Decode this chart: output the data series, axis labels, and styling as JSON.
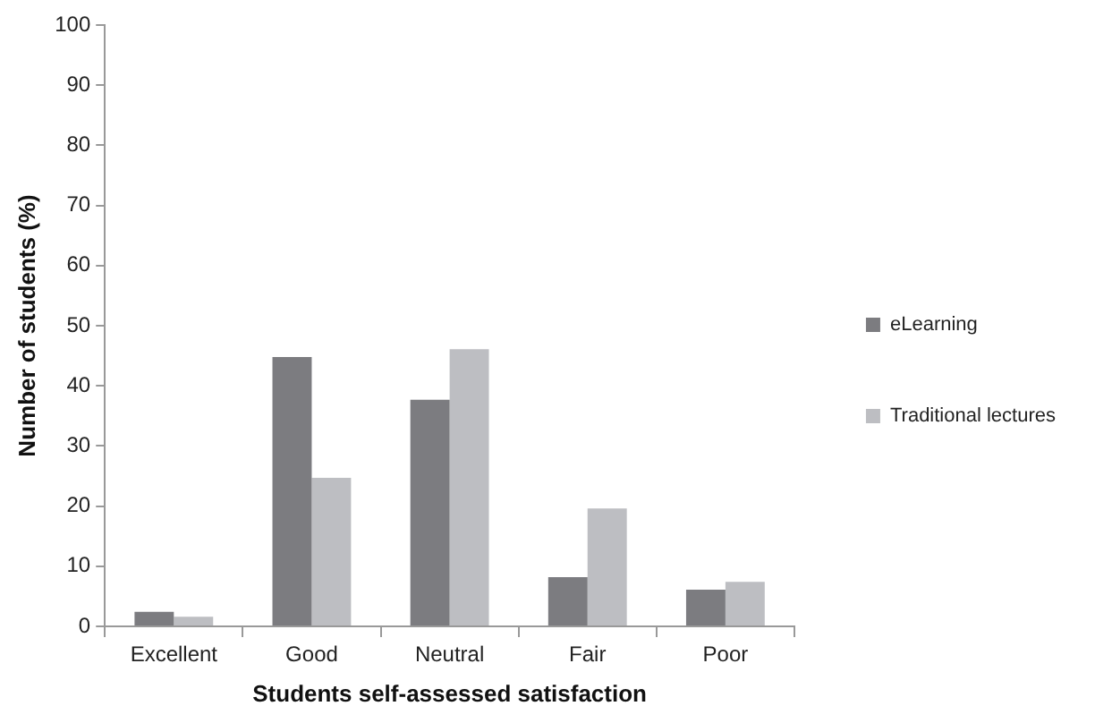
{
  "chart_data": {
    "type": "bar",
    "xlabel": "Students self-assessed satisfaction",
    "ylabel": "Number of students (%)",
    "categories": [
      "Excellent",
      "Good",
      "Neutral",
      "Fair",
      "Poor"
    ],
    "series": [
      {
        "name": "eLearning",
        "color": "#7c7c80",
        "values": [
          2.4,
          44.8,
          37.7,
          8.2,
          6.1
        ]
      },
      {
        "name": "Traditional lectures",
        "color": "#bdbec2",
        "values": [
          1.6,
          24.7,
          46.1,
          19.6,
          7.4
        ]
      }
    ],
    "ylim": [
      0,
      100
    ],
    "yticks": [
      0,
      10,
      20,
      30,
      40,
      50,
      60,
      70,
      80,
      90,
      100
    ],
    "grid": false,
    "legend": "right"
  }
}
